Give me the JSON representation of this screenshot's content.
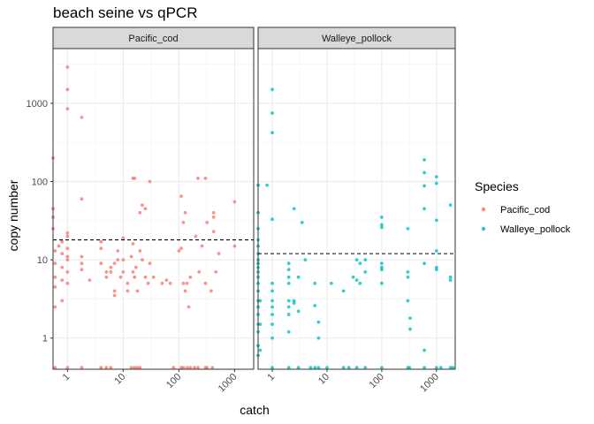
{
  "chart_data": {
    "type": "scatter",
    "title": "beach seine vs qPCR",
    "xlabel": "catch",
    "ylabel": "copy number",
    "x_scale": "log10",
    "y_scale": "log10",
    "xlim": [
      0.55,
      2200
    ],
    "ylim": [
      0.4,
      5000
    ],
    "x_ticks": [
      1,
      10,
      100,
      1000
    ],
    "x_tick_labels": [
      "1",
      "10",
      "100",
      "1000"
    ],
    "y_ticks": [
      1,
      10,
      100,
      1000
    ],
    "y_tick_labels": [
      "1",
      "10",
      "100",
      "1000"
    ],
    "grid": true,
    "legend": {
      "title": "Species",
      "placement": "right",
      "entries": [
        "Pacific_cod",
        "Walleye_pollock"
      ]
    },
    "colors": {
      "Pacific_cod": "#F8766D",
      "Walleye_pollock": "#00BFC4"
    },
    "facets": [
      {
        "label": "Pacific_cod",
        "hline": 18,
        "points": [
          [
            1,
            2900
          ],
          [
            1,
            1500
          ],
          [
            1,
            850
          ],
          [
            1.8,
            660
          ],
          [
            0.55,
            200
          ],
          [
            1.8,
            60
          ],
          [
            15,
            110
          ],
          [
            16,
            110
          ],
          [
            20,
            40
          ],
          [
            22,
            50
          ],
          [
            25,
            45
          ],
          [
            30,
            100
          ],
          [
            110,
            65
          ],
          [
            120,
            30
          ],
          [
            130,
            40
          ],
          [
            220,
            110
          ],
          [
            300,
            110
          ],
          [
            320,
            30
          ],
          [
            420,
            35
          ],
          [
            420,
            40
          ],
          [
            1000,
            55
          ],
          [
            0.55,
            45
          ],
          [
            0.55,
            35
          ],
          [
            0.55,
            25
          ],
          [
            1,
            22
          ],
          [
            1,
            20
          ],
          [
            0.8,
            17
          ],
          [
            0.7,
            15
          ],
          [
            1,
            14
          ],
          [
            0.6,
            13
          ],
          [
            0.8,
            12
          ],
          [
            1,
            11
          ],
          [
            1,
            10
          ],
          [
            0.6,
            9
          ],
          [
            0.8,
            8
          ],
          [
            1,
            7
          ],
          [
            0.6,
            6
          ],
          [
            0.8,
            5.5
          ],
          [
            1,
            5
          ],
          [
            0.6,
            4.5
          ],
          [
            0.8,
            3
          ],
          [
            0.6,
            2.5
          ],
          [
            1.8,
            11
          ],
          [
            1.8,
            9
          ],
          [
            1.8,
            7.5
          ],
          [
            2.5,
            5.5
          ],
          [
            4,
            17
          ],
          [
            4,
            14
          ],
          [
            4,
            9
          ],
          [
            5,
            7
          ],
          [
            5,
            6
          ],
          [
            6,
            8
          ],
          [
            6,
            7
          ],
          [
            7,
            4
          ],
          [
            7,
            3.5
          ],
          [
            7,
            9
          ],
          [
            8,
            13
          ],
          [
            8,
            10
          ],
          [
            9,
            6
          ],
          [
            10,
            19
          ],
          [
            10,
            10
          ],
          [
            10,
            7
          ],
          [
            12,
            5
          ],
          [
            12,
            4
          ],
          [
            14,
            11
          ],
          [
            15,
            16
          ],
          [
            15,
            7
          ],
          [
            16,
            6
          ],
          [
            17,
            8
          ],
          [
            18,
            4
          ],
          [
            20,
            13
          ],
          [
            22,
            10
          ],
          [
            25,
            6
          ],
          [
            28,
            5
          ],
          [
            30,
            9
          ],
          [
            35,
            6
          ],
          [
            50,
            5
          ],
          [
            60,
            5.5
          ],
          [
            70,
            5
          ],
          [
            100,
            13
          ],
          [
            110,
            14
          ],
          [
            120,
            5
          ],
          [
            130,
            4
          ],
          [
            140,
            5
          ],
          [
            150,
            2.5
          ],
          [
            160,
            6
          ],
          [
            200,
            20
          ],
          [
            230,
            7
          ],
          [
            260,
            15
          ],
          [
            300,
            5
          ],
          [
            380,
            4
          ],
          [
            420,
            23
          ],
          [
            460,
            7
          ],
          [
            520,
            12
          ],
          [
            1000,
            15
          ],
          [
            0.6,
            0.42
          ],
          [
            1,
            0.42
          ],
          [
            1.8,
            0.42
          ],
          [
            4,
            0.42
          ],
          [
            5,
            0.42
          ],
          [
            6,
            0.42
          ],
          [
            14,
            0.42
          ],
          [
            16,
            0.42
          ],
          [
            18,
            0.42
          ],
          [
            20,
            0.42
          ],
          [
            80,
            0.42
          ],
          [
            110,
            0.42
          ],
          [
            120,
            0.42
          ],
          [
            140,
            0.42
          ],
          [
            160,
            0.42
          ],
          [
            190,
            0.42
          ],
          [
            220,
            0.42
          ],
          [
            300,
            0.42
          ],
          [
            320,
            0.42
          ],
          [
            400,
            0.42
          ]
        ]
      },
      {
        "label": "Walleye_pollock",
        "hline": 12,
        "points": [
          [
            1,
            1500
          ],
          [
            1,
            750
          ],
          [
            1,
            420
          ],
          [
            0.8,
            90
          ],
          [
            0.55,
            90
          ],
          [
            2.5,
            45
          ],
          [
            1,
            33
          ],
          [
            3.5,
            30
          ],
          [
            100,
            35
          ],
          [
            100,
            28
          ],
          [
            100,
            26
          ],
          [
            600,
            190
          ],
          [
            600,
            130
          ],
          [
            600,
            88
          ],
          [
            1000,
            115
          ],
          [
            1000,
            95
          ],
          [
            1000,
            32
          ],
          [
            600,
            45
          ],
          [
            1800,
            50
          ],
          [
            300,
            25
          ],
          [
            1000,
            13
          ],
          [
            0.55,
            40
          ],
          [
            0.55,
            25
          ],
          [
            0.55,
            18
          ],
          [
            0.55,
            15
          ],
          [
            0.55,
            12
          ],
          [
            0.55,
            10
          ],
          [
            0.55,
            9
          ],
          [
            0.55,
            8
          ],
          [
            0.55,
            7
          ],
          [
            0.55,
            6
          ],
          [
            0.55,
            5
          ],
          [
            0.55,
            4
          ],
          [
            0.55,
            3
          ],
          [
            0.55,
            2.5
          ],
          [
            0.55,
            2
          ],
          [
            0.55,
            1.5
          ],
          [
            0.55,
            1.2
          ],
          [
            0.55,
            0.8
          ],
          [
            0.55,
            0.6
          ],
          [
            0.6,
            3
          ],
          [
            0.6,
            1.5
          ],
          [
            0.6,
            0.7
          ],
          [
            1,
            5
          ],
          [
            1,
            4
          ],
          [
            1,
            3
          ],
          [
            1,
            2.5
          ],
          [
            1,
            2
          ],
          [
            1,
            1.5
          ],
          [
            1,
            1
          ],
          [
            2,
            9
          ],
          [
            2,
            7.5
          ],
          [
            2,
            6
          ],
          [
            2,
            5
          ],
          [
            2,
            3
          ],
          [
            2,
            2.5
          ],
          [
            2,
            2
          ],
          [
            2,
            1.2
          ],
          [
            2.5,
            3
          ],
          [
            2.5,
            2.8
          ],
          [
            3,
            6
          ],
          [
            3,
            2.2
          ],
          [
            4,
            10
          ],
          [
            6,
            5
          ],
          [
            6,
            2.6
          ],
          [
            7,
            1.6
          ],
          [
            7,
            1
          ],
          [
            12,
            5
          ],
          [
            20,
            4
          ],
          [
            30,
            6
          ],
          [
            35,
            10
          ],
          [
            35,
            5.5
          ],
          [
            40,
            9
          ],
          [
            40,
            5
          ],
          [
            50,
            10
          ],
          [
            50,
            7
          ],
          [
            100,
            9
          ],
          [
            100,
            8
          ],
          [
            100,
            7.5
          ],
          [
            100,
            5
          ],
          [
            300,
            7
          ],
          [
            300,
            6
          ],
          [
            300,
            3
          ],
          [
            330,
            1.8
          ],
          [
            330,
            1.3
          ],
          [
            600,
            9
          ],
          [
            600,
            0.7
          ],
          [
            1000,
            8
          ],
          [
            1000,
            7.5
          ],
          [
            1800,
            6
          ],
          [
            1800,
            5.5
          ],
          [
            1,
            0.42
          ],
          [
            2,
            0.42
          ],
          [
            3,
            0.42
          ],
          [
            5,
            0.42
          ],
          [
            6,
            0.42
          ],
          [
            7,
            0.42
          ],
          [
            10,
            0.42
          ],
          [
            20,
            0.42
          ],
          [
            25,
            0.42
          ],
          [
            35,
            0.42
          ],
          [
            50,
            0.42
          ],
          [
            100,
            0.42
          ],
          [
            300,
            0.42
          ],
          [
            320,
            0.42
          ],
          [
            600,
            0.42
          ],
          [
            1000,
            0.42
          ],
          [
            1200,
            0.42
          ],
          [
            1800,
            0.42
          ],
          [
            2000,
            0.42
          ]
        ]
      }
    ]
  }
}
